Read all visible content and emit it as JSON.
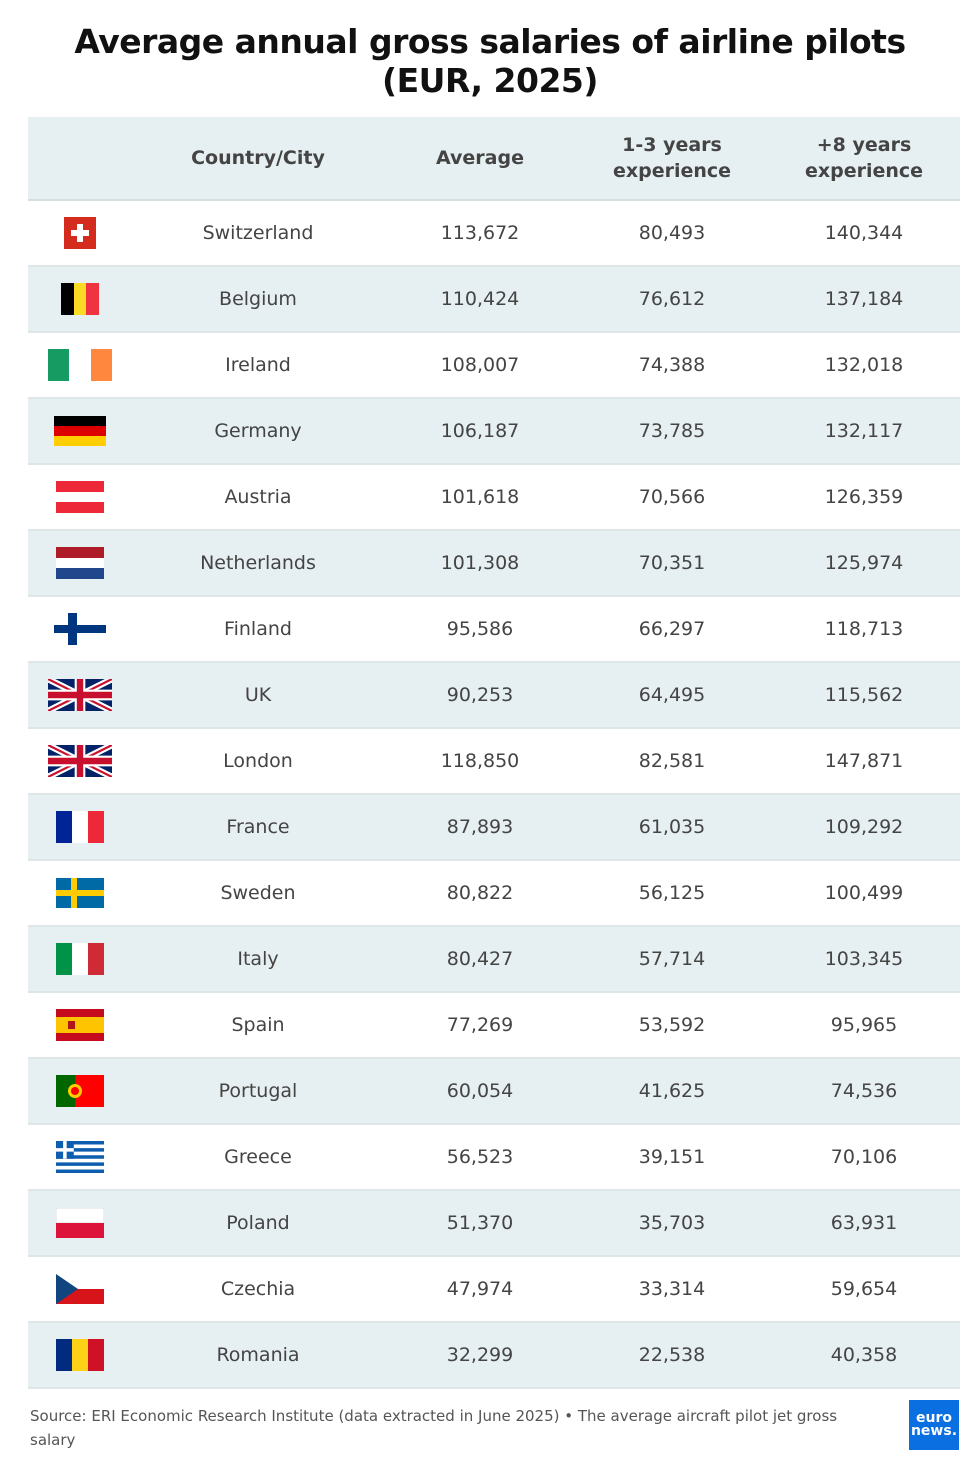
{
  "title": "Average annual gross salaries of airline pilots (EUR, 2025)",
  "chart_data": {
    "type": "table",
    "title": "Average annual gross salaries of airline pilots (EUR, 2025)",
    "columns": [
      "",
      "Country/City",
      "Average",
      "1-3 years experience",
      "+8 years experience"
    ],
    "rows": [
      {
        "flag": "switzerland-flag-icon",
        "name": "Switzerland",
        "avg": "113,672",
        "y13": "80,493",
        "y8": "140,344"
      },
      {
        "flag": "belgium-flag-icon",
        "name": "Belgium",
        "avg": "110,424",
        "y13": "76,612",
        "y8": "137,184"
      },
      {
        "flag": "ireland-flag-icon",
        "name": "Ireland",
        "avg": "108,007",
        "y13": "74,388",
        "y8": "132,018"
      },
      {
        "flag": "germany-flag-icon",
        "name": "Germany",
        "avg": "106,187",
        "y13": "73,785",
        "y8": "132,117"
      },
      {
        "flag": "austria-flag-icon",
        "name": "Austria",
        "avg": "101,618",
        "y13": "70,566",
        "y8": "126,359"
      },
      {
        "flag": "netherlands-flag-icon",
        "name": "Netherlands",
        "avg": "101,308",
        "y13": "70,351",
        "y8": "125,974"
      },
      {
        "flag": "finland-flag-icon",
        "name": "Finland",
        "avg": "95,586",
        "y13": "66,297",
        "y8": "118,713"
      },
      {
        "flag": "uk-flag-icon",
        "name": "UK",
        "avg": "90,253",
        "y13": "64,495",
        "y8": "115,562"
      },
      {
        "flag": "uk-flag-icon",
        "name": "London",
        "avg": "118,850",
        "y13": "82,581",
        "y8": "147,871"
      },
      {
        "flag": "france-flag-icon",
        "name": "France",
        "avg": "87,893",
        "y13": "61,035",
        "y8": "109,292"
      },
      {
        "flag": "sweden-flag-icon",
        "name": "Sweden",
        "avg": "80,822",
        "y13": "56,125",
        "y8": "100,499"
      },
      {
        "flag": "italy-flag-icon",
        "name": "Italy",
        "avg": "80,427",
        "y13": "57,714",
        "y8": "103,345"
      },
      {
        "flag": "spain-flag-icon",
        "name": "Spain",
        "avg": "77,269",
        "y13": "53,592",
        "y8": "95,965"
      },
      {
        "flag": "portugal-flag-icon",
        "name": "Portugal",
        "avg": "60,054",
        "y13": "41,625",
        "y8": "74,536"
      },
      {
        "flag": "greece-flag-icon",
        "name": "Greece",
        "avg": "56,523",
        "y13": "39,151",
        "y8": "70,106"
      },
      {
        "flag": "poland-flag-icon",
        "name": "Poland",
        "avg": "51,370",
        "y13": "35,703",
        "y8": "63,931"
      },
      {
        "flag": "czechia-flag-icon",
        "name": "Czechia",
        "avg": "47,974",
        "y13": "33,314",
        "y8": "59,654"
      },
      {
        "flag": "romania-flag-icon",
        "name": "Romania",
        "avg": "32,299",
        "y13": "22,538",
        "y8": "40,358"
      }
    ]
  },
  "header": {
    "country": "Country/City",
    "average": "Average",
    "y13_line1": "1-3 years",
    "y13_line2": "experience",
    "y8_line1": "+8 years",
    "y8_line2": "experience"
  },
  "source": "Source: ERI Economic Research Institute (data extracted in June 2025) • The average aircraft pilot jet gross salary",
  "logo": {
    "line1": "euro",
    "line2": "news."
  },
  "colors": {
    "header_bg": "#e6eff1",
    "logo_bg": "#0a6fe0"
  }
}
